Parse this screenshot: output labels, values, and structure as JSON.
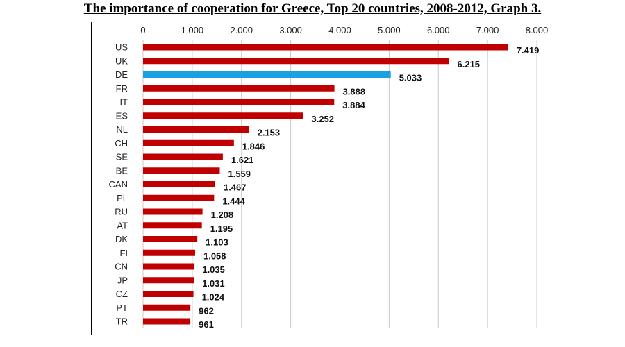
{
  "title": "The importance of cooperation for Greece, Top 20 countries, 2008-2012, Graph 3.",
  "chart_data": {
    "type": "bar",
    "orientation": "horizontal",
    "xlim": [
      0,
      8000
    ],
    "ticks": [
      0,
      1000,
      2000,
      3000,
      4000,
      5000,
      6000,
      7000,
      8000
    ],
    "tick_labels": [
      "0",
      "1.000",
      "2.000",
      "3.000",
      "4.000",
      "5.000",
      "6.000",
      "7.000",
      "8.000"
    ],
    "categories": [
      "US",
      "UK",
      "DE",
      "FR",
      "IT",
      "ES",
      "NL",
      "CH",
      "SE",
      "BE",
      "CAN",
      "PL",
      "RU",
      "AT",
      "DK",
      "FI",
      "CN",
      "JP",
      "CZ",
      "PT",
      "TR"
    ],
    "values": [
      7419,
      6215,
      5033,
      3888,
      3884,
      3252,
      2153,
      1846,
      1621,
      1559,
      1467,
      1444,
      1208,
      1195,
      1103,
      1058,
      1035,
      1031,
      1024,
      962,
      961
    ],
    "value_labels": [
      "7.419",
      "6.215",
      "5.033",
      "3.888",
      "3.884",
      "3.252",
      "2.153",
      "1.846",
      "1.621",
      "1.559",
      "1.467",
      "1.444",
      "1.208",
      "1.195",
      "1.103",
      "1.058",
      "1.035",
      "1.031",
      "1.024",
      "962",
      "961"
    ],
    "bar_color": "#c00000",
    "highlight": {
      "category": "DE",
      "color": "#1ba1e2"
    },
    "grid": true,
    "tick_position": "top"
  }
}
